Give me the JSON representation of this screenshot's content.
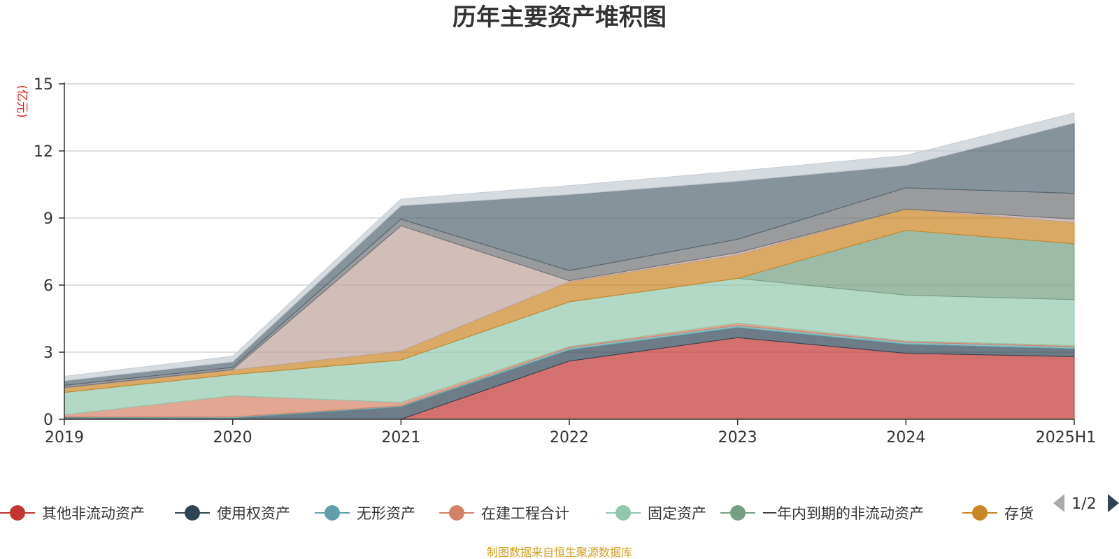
{
  "chart_data": {
    "type": "area",
    "stacked": true,
    "title": "历年主要资产堆积图",
    "unit_label": "(亿元)",
    "categories": [
      "2019",
      "2020",
      "2021",
      "2022",
      "2023",
      "2024",
      "2025H1"
    ],
    "ylim": [
      0,
      15
    ],
    "yticks": [
      "0",
      "3",
      "6",
      "9",
      "12",
      "15"
    ],
    "grid": true,
    "legend_position": "bottom",
    "series": [
      {
        "name": "其他非流动资产",
        "color": "#c23531",
        "values": [
          0.0,
          0.0,
          0.0,
          2.6,
          3.65,
          2.95,
          2.8
        ]
      },
      {
        "name": "使用权资产",
        "color": "#2f4554",
        "values": [
          0.08,
          0.05,
          0.55,
          0.5,
          0.45,
          0.4,
          0.35
        ]
      },
      {
        "name": "无形资产",
        "color": "#61a0a8",
        "values": [
          0.02,
          0.05,
          0.05,
          0.1,
          0.1,
          0.1,
          0.1
        ]
      },
      {
        "name": "在建工程合计",
        "color": "#d48265",
        "values": [
          0.1,
          0.95,
          0.15,
          0.05,
          0.1,
          0.05,
          0.05
        ]
      },
      {
        "name": "固定资产",
        "color": "#91c7ae",
        "values": [
          1.0,
          0.95,
          1.9,
          2.0,
          2.0,
          2.05,
          2.05
        ]
      },
      {
        "name": "一年内到期的非流动资产",
        "color": "#749f83",
        "values": [
          0.0,
          0.0,
          0.0,
          0.0,
          0.0,
          2.9,
          2.5
        ]
      },
      {
        "name": "存货",
        "color": "#ca8622",
        "values": [
          0.2,
          0.2,
          0.4,
          0.9,
          1.05,
          0.95,
          0.95
        ]
      },
      {
        "name": "",
        "color": "#bda29a",
        "values": [
          0.02,
          0.02,
          5.6,
          0.05,
          0.1,
          0.0,
          0.15
        ]
      },
      {
        "name": "",
        "color": "#6e7074",
        "values": [
          0.1,
          0.1,
          0.3,
          0.45,
          0.6,
          0.95,
          1.15
        ]
      },
      {
        "name": "",
        "color": "#546570",
        "values": [
          0.2,
          0.25,
          0.6,
          3.4,
          2.6,
          1.0,
          3.15
        ]
      },
      {
        "name": "",
        "color": "#c4ccd3",
        "values": [
          0.2,
          0.25,
          0.3,
          0.4,
          0.45,
          0.45,
          0.45
        ]
      }
    ],
    "legend": {
      "items": [
        "其他非流动资产",
        "使用权资产",
        "无形资产",
        "在建工程合计",
        "固定资产",
        "一年内到期的非流动资产",
        "存货"
      ],
      "page_indicator": "1/2"
    }
  },
  "source_note": "制图数据来自恒生聚源数据库"
}
